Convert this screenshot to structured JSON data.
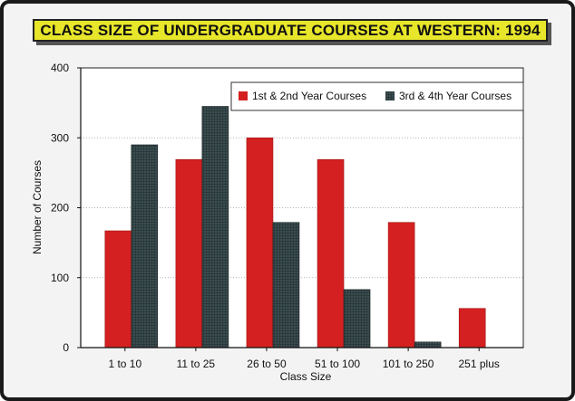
{
  "chart_data": {
    "type": "bar",
    "title": "CLASS SIZE OF UNDERGRADUATE COURSES AT WESTERN:  1994",
    "xlabel": "Class Size",
    "ylabel": "Number of Courses",
    "categories": [
      "1 to 10",
      "11 to 25",
      "26 to 50",
      "51 to 100",
      "101 to 250",
      "251 plus"
    ],
    "series": [
      {
        "name": "1st & 2nd Year Courses",
        "values": [
          167,
          269,
          300,
          269,
          179,
          56
        ],
        "color": "#d42020"
      },
      {
        "name": "3rd & 4th Year Courses",
        "values": [
          290,
          345,
          179,
          83,
          8,
          0
        ],
        "color": "#2a3a3c"
      }
    ],
    "ylim": [
      0,
      400
    ],
    "yticks": [
      0,
      100,
      200,
      300,
      400
    ],
    "grid": true,
    "legend": "top-right"
  }
}
